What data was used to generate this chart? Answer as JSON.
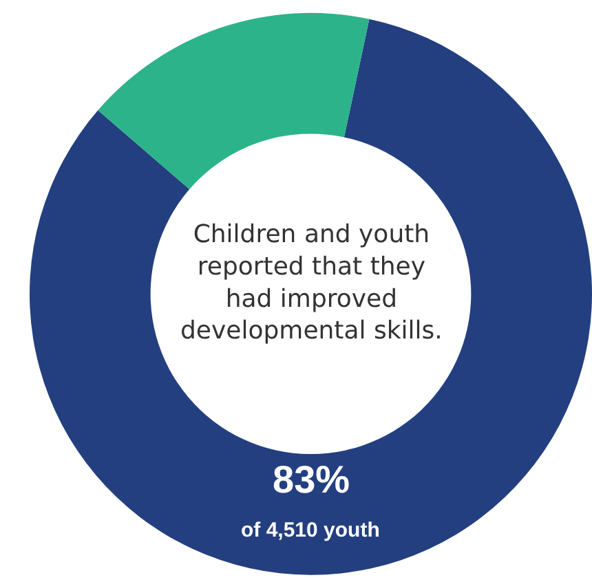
{
  "chart_data": {
    "type": "donut",
    "title": "Children and youth reported that they had improved developmental skills.",
    "categories": [
      null,
      null
    ],
    "values": [
      83,
      17
    ],
    "colors": [
      "#233f80",
      "#2db38a"
    ],
    "value_labels": [
      "83%",
      null
    ],
    "annotations": [
      "of 4,510 youth"
    ]
  }
}
